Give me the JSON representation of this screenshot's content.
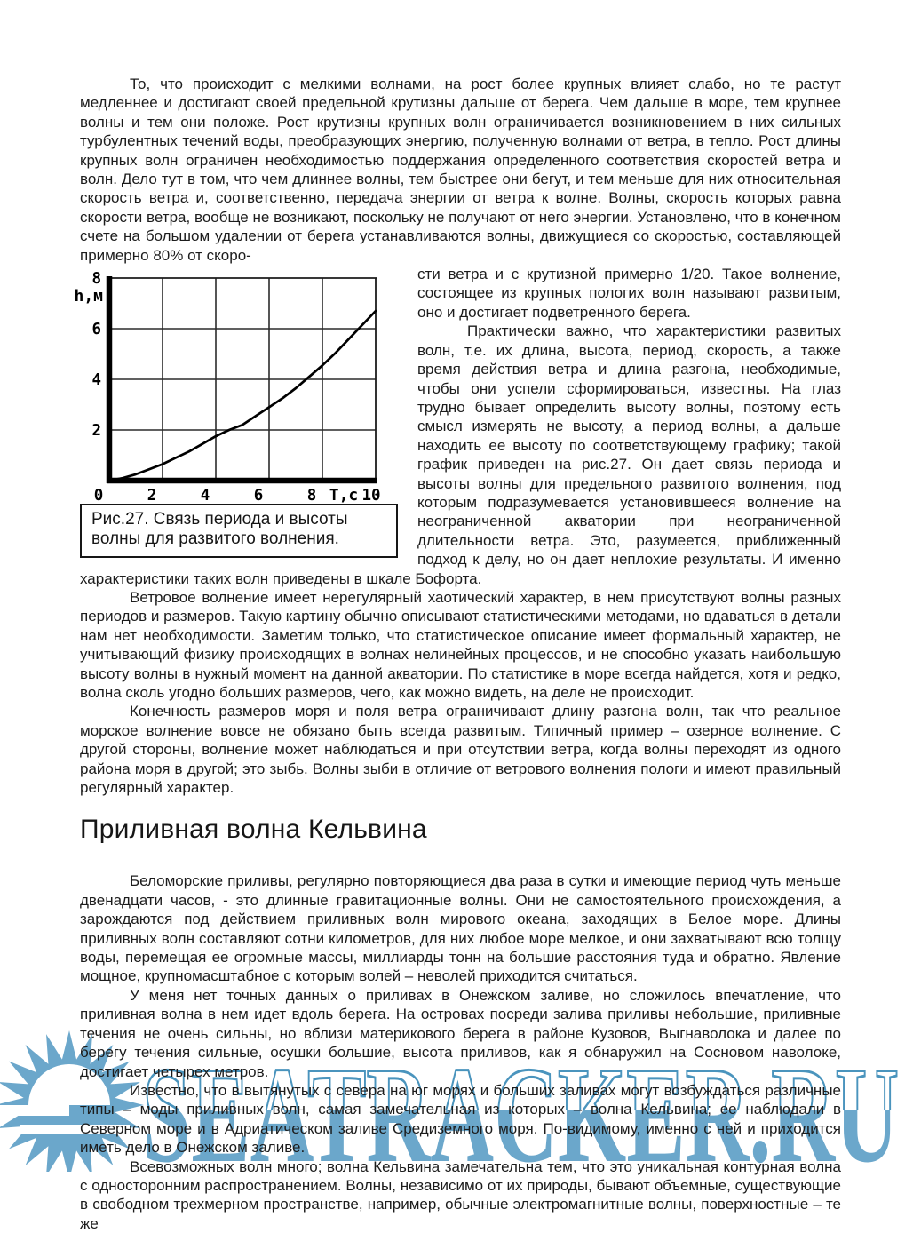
{
  "page": {
    "background": "#ffffff",
    "text_color": "#1c1c1c"
  },
  "article": {
    "para1a": "То, что происходит с мелкими волнами, на рост более крупных влияет слабо, но те растут медленнее и достигают своей предельной крутизны дальше от берега. Чем дальше в море, тем крупнее волны и тем они положе. Рост крутизны крупных волн ограничивается возникновением в них сильных турбулентных течений воды, преобразующих энергию, полученную волнами от ветра, в тепло. Рост длины крупных волн ограничен необходимостью поддержания определенного соответствия скоростей ветра и волн. Дело тут в том, что чем длиннее волны, тем быстрее они бегут, и тем меньше для них относительная скорость ветра и, соответственно, передача энергии от ветра к волне. Волны, скорость которых равна скорости ветра, вообще не возникают, поскольку не получают от него энергии. Установлено, что в конечном счете на большом удалении от берега устанавливаются волны, движущиеся со скоростью, составляющей примерно 80% от скоро-",
    "para1b": "сти ветра и с крутизной примерно 1/20. Такое волнение, состоящее из крупных пологих волн называют развитым, оно и достигает подветренного берега.",
    "para2": "Практически важно, что характеристики развитых волн, т.е. их длина, высота, период, скорость, а также время действия ветра и длина разгона, необходимые, чтобы они успели сформироваться, известны. На глаз трудно бывает определить высоту волны, поэтому есть смысл измерять не высоту, а период волны, а дальше находить ее высоту по соответствующему графику; такой график приведен на рис.27. Он дает связь периода и высоты волны для предельного развитого волнения, под которым подразумевается установившееся волнение на неограниченной акватории при неограниченной длительности ветра. Это, разумеется, приближенный подход к делу, но он дает неплохие результаты. И именно характеристики таких волн приведены в шкале Бофорта.",
    "para3": "Ветровое волнение имеет нерегулярный хаотический характер, в нем присутствуют волны разных периодов и размеров. Такую картину обычно описывают статистическими методами, но вдаваться в детали нам нет необходимости. Заметим только, что статистическое описание имеет формальный характер, не учитывающий физику происходящих в волнах нелинейных процессов, и не способно указать наибольшую высоту волны в нужный момент на данной акватории. По статистике в море всегда найдется, хотя и редко, волна сколь угодно больших размеров, чего, как можно видеть, на деле не происходит.",
    "para4": "Конечность размеров моря и поля ветра ограничивают длину разгона волн, так что реальное морское волнение вовсе не обязано быть всегда развитым. Типичный пример – озерное волнение. С другой стороны, волнение может наблюдаться и при отсутствии ветра, когда волны переходят из одного района моря в другой; это зыбь. Волны зыби в отличие от ветрового волнения пологи и имеют правильный регулярный характер.",
    "heading": "Приливная волна Кельвина",
    "para5": "Беломорские приливы, регулярно повторяющиеся два раза в сутки и имеющие период чуть меньше двенадцати часов, - это длинные гравитационные волны. Они не самостоятельного происхождения, а зарождаются под действием приливных волн мирового океана, заходящих в Белое море. Длины приливных волн составляют сотни километров, для них любое море мелкое, и они захватывают всю толщу воды, перемещая ее огромные массы, миллиарды тонн на большие расстояния туда и обратно. Явление мощное, крупномасштабное с которым волей – неволей приходится считаться.",
    "para6": "У меня нет точных данных о приливах в Онежском заливе, но сложилось впечатление, что приливная волна в нем идет вдоль берега. На островах посреди залива приливы небольшие, приливные течения не очень сильны, но вблизи материкового берега в районе Кузовов, Выгнаволока и далее по берегу течения сильные, осушки большие, высота приливов, как я обнаружил на Сосновом наволоке, достигает четырех метров.",
    "para7": "Известно, что в вытянутых с севера на юг морях и больших заливах могут возбуждаться различные типы – моды приливных волн, самая замечательная из которых – волна Кельвина; ее наблюдали в Северном море и в Адриатическом заливе Средиземного моря. По-видимому, именно с ней и приходится иметь дело в Онежском заливе.",
    "para8": "Всевозможных волн много; волна Кельвина замечательна тем, что это уникальная контурная волна с односторонним распространением. Волны, независимо от их природы, бывают объемные, существующие в свободном трехмерном пространстве, например, обычные электромагнитные волны, поверхностные – те же"
  },
  "figure": {
    "caption": "Рис.27. Связь периода и высоты волны для развитого волнения."
  },
  "chart_data": {
    "type": "line",
    "title": "",
    "xlabel": "T,с",
    "ylabel": "h,м",
    "xlim": [
      0,
      10
    ],
    "ylim": [
      0,
      8
    ],
    "x_ticks": [
      0,
      2,
      4,
      6,
      8,
      10
    ],
    "y_ticks": [
      8,
      6,
      4,
      2
    ],
    "grid": true,
    "legend": false,
    "line_color": "#000000",
    "x": [
      0,
      0.5,
      1,
      1.5,
      2,
      2.5,
      3,
      3.5,
      4,
      4.5,
      5,
      5.5,
      6,
      6.5,
      7,
      7.5,
      8,
      8.5,
      9,
      9.5,
      10
    ],
    "values": [
      0,
      0.1,
      0.25,
      0.45,
      0.65,
      0.9,
      1.15,
      1.45,
      1.75,
      2.0,
      2.2,
      2.55,
      2.9,
      3.25,
      3.65,
      4.1,
      4.55,
      5.05,
      5.6,
      6.15,
      6.7
    ]
  },
  "watermark": {
    "text": "SEATRACKER.RU",
    "fill_color": "#6ba7cb",
    "outline_color": "#4a94bd"
  }
}
